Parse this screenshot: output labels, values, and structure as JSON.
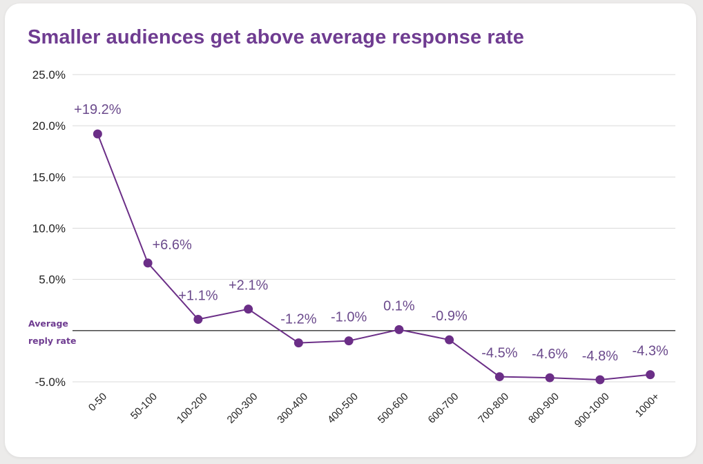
{
  "chart_data": {
    "type": "line",
    "title": "Smaller audiences get above average response rate",
    "categories": [
      "0-50",
      "50-100",
      "100-200",
      "200-300",
      "300-400",
      "400-500",
      "500-600",
      "600-700",
      "700-800",
      "800-900",
      "900-1000",
      "1000+"
    ],
    "values": [
      19.2,
      6.6,
      1.1,
      2.1,
      -1.2,
      -1.0,
      0.1,
      -0.9,
      -4.5,
      -4.6,
      -4.8,
      -4.3
    ],
    "data_labels": [
      "+19.2%",
      "+6.6%",
      "+1.1%",
      "+2.1%",
      "-1.2%",
      "-1.0%",
      "0.1%",
      "-0.9%",
      "-4.5%",
      "-4.6%",
      "-4.8%",
      "-4.3%"
    ],
    "y_ticks": [
      25,
      20,
      15,
      10,
      5,
      -5
    ],
    "y_tick_labels": [
      "25.0%",
      "20.0%",
      "15.0%",
      "10.0%",
      "5.0%",
      "-5.0%"
    ],
    "ylim": [
      -5,
      25
    ],
    "grid": true,
    "reference_line": {
      "value": 0,
      "label_line1": "Average",
      "label_line2": "reply rate"
    },
    "colors": {
      "series": "#6b2e87",
      "title": "#6f3c91",
      "label": "#6b4a8c",
      "grid": "#d9d9d9",
      "baseline": "#333333"
    }
  }
}
